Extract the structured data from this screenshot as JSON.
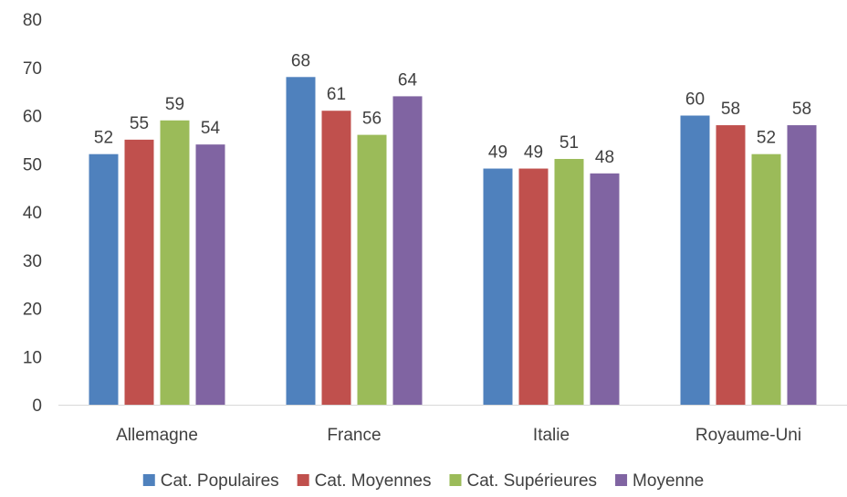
{
  "chart_data": {
    "type": "bar",
    "title": "",
    "xlabel": "",
    "ylabel": "",
    "categories": [
      "Allemagne",
      "France",
      "Italie",
      "Royaume-Uni"
    ],
    "series": [
      {
        "name": "Cat. Populaires",
        "color": "#4F81BD",
        "values": [
          52,
          68,
          49,
          60
        ]
      },
      {
        "name": "Cat. Moyennes",
        "color": "#C0504D",
        "values": [
          55,
          61,
          49,
          58
        ]
      },
      {
        "name": "Cat. Supérieures",
        "color": "#9BBB59",
        "values": [
          59,
          56,
          51,
          52
        ]
      },
      {
        "name": "Moyenne",
        "color": "#8064A2",
        "values": [
          54,
          64,
          48,
          58
        ]
      }
    ],
    "ylim": [
      0,
      80
    ],
    "yticks": [
      0,
      10,
      20,
      30,
      40,
      50,
      60,
      70,
      80
    ],
    "grid": false,
    "legend_position": "bottom",
    "data_labels": true
  }
}
